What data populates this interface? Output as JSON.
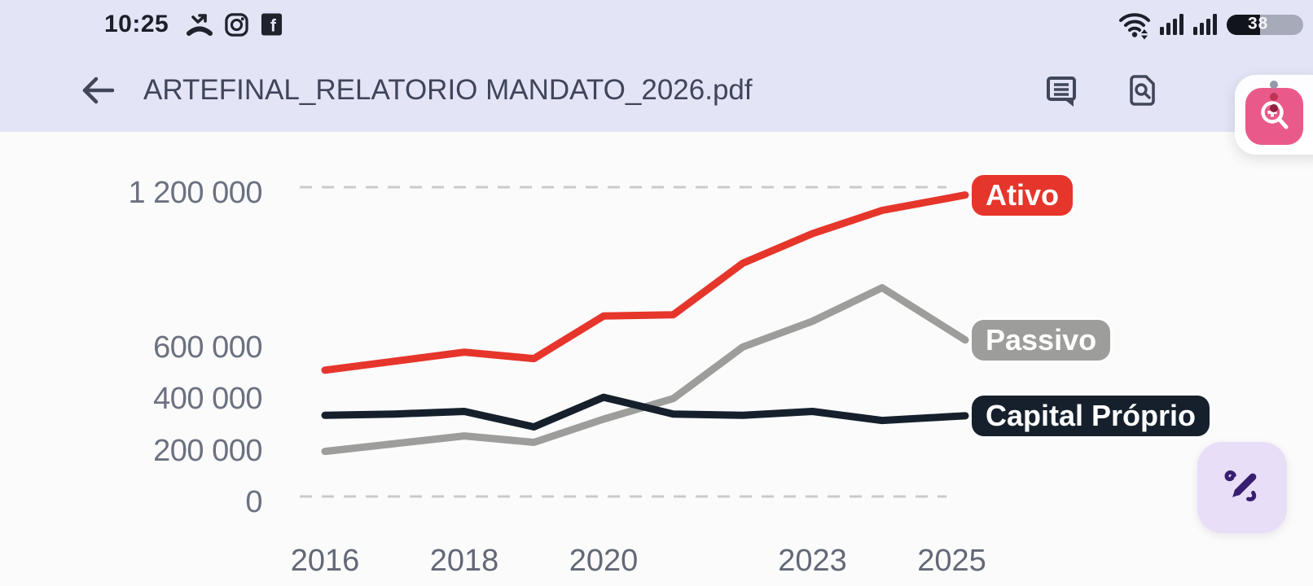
{
  "status_bar": {
    "time": "10:25",
    "battery_level": "38",
    "left_icons": [
      "missed-call",
      "instagram",
      "facebook"
    ],
    "right_icons": [
      "wifi",
      "signal-sim1",
      "signal-sim2",
      "battery"
    ]
  },
  "header": {
    "title": "ARTEFINAL_RELATORIO MANDATO_2026.pdf",
    "back_icon": "arrow-left",
    "action_icons": [
      "comments",
      "find-in-document"
    ]
  },
  "floating_tools": {
    "magnifier_button": {
      "icon": "zoom-in-magnifier",
      "color": "#e9598a"
    },
    "annotate_button": {
      "icon": "stylus-note",
      "color": "#e8def8",
      "icon_color": "#381e72"
    }
  },
  "chart_data": {
    "type": "line",
    "title": "",
    "xlabel": "",
    "ylabel": "",
    "x": [
      2016,
      2017,
      2018,
      2019,
      2020,
      2021,
      2022,
      2023,
      2024,
      2025
    ],
    "xticks": [
      2016,
      2018,
      2020,
      2023,
      2025
    ],
    "xtick_labels": [
      "2016",
      "2018",
      "2020",
      "2023",
      "2025"
    ],
    "ylim": [
      0,
      1200000
    ],
    "yticks": [
      {
        "value": 1200000,
        "label": "1 200 000"
      },
      {
        "value": 600000,
        "label": "600 000"
      },
      {
        "value": 400000,
        "label": "400 000"
      },
      {
        "value": 200000,
        "label": "200 000"
      },
      {
        "value": 0,
        "label": "0"
      }
    ],
    "gridlines_at": [
      1200000,
      0
    ],
    "grid_style": "dashed",
    "legend_position": "right-inline-pills",
    "series": [
      {
        "name": "Ativo",
        "color": "#e6352b",
        "values": [
          490000,
          525000,
          560000,
          535000,
          700000,
          705000,
          905000,
          1020000,
          1110000,
          1160000
        ]
      },
      {
        "name": "Passivo",
        "color": "#9d9d9b",
        "values": [
          175000,
          205000,
          235000,
          210000,
          300000,
          380000,
          580000,
          680000,
          810000,
          640000
        ]
      },
      {
        "name": "Capital Próprio",
        "color": "#16202d",
        "values": [
          315000,
          320000,
          330000,
          270000,
          385000,
          320000,
          315000,
          330000,
          295000,
          310000
        ]
      }
    ]
  }
}
